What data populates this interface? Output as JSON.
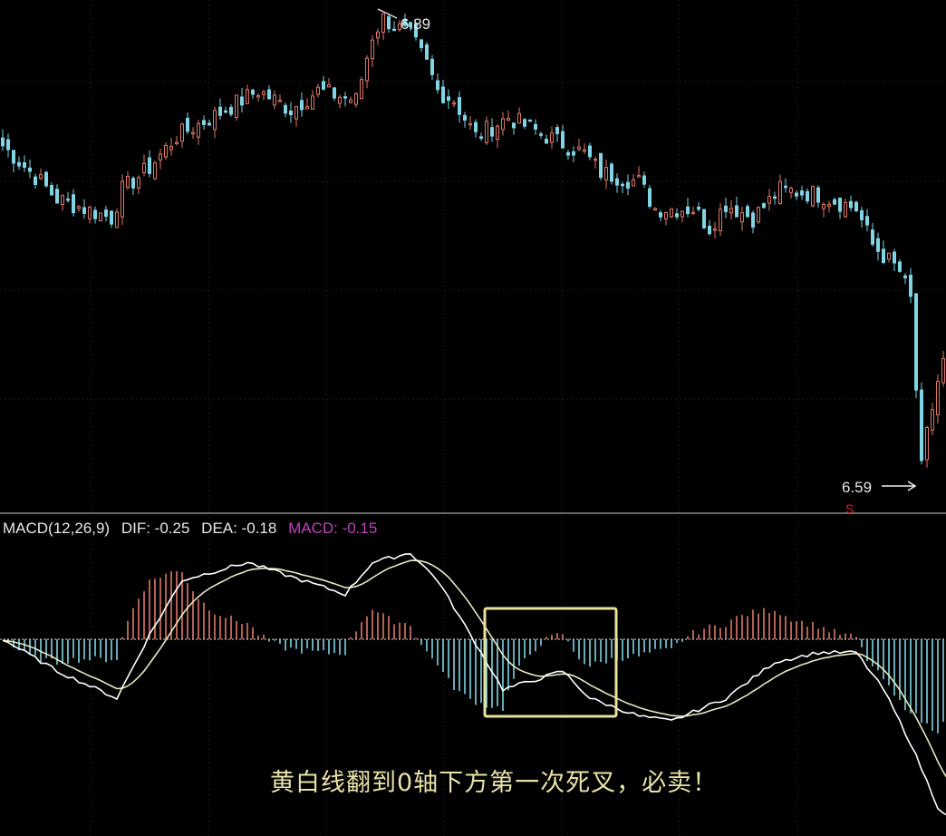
{
  "chart_data": {
    "type": "candlestick",
    "up_color": "#e07868",
    "down_color": "#80d4e4",
    "price_panel": {
      "high_label": "6.89",
      "low_label": "6.59",
      "ylim": [
        6.59,
        6.89
      ],
      "close_keypoints": [
        {
          "bar": 0,
          "close": 6.806
        },
        {
          "bar": 7,
          "close": 6.783
        },
        {
          "bar": 10,
          "close": 6.772
        },
        {
          "bar": 20,
          "close": 6.76
        },
        {
          "bar": 22,
          "close": 6.778
        },
        {
          "bar": 27,
          "close": 6.792
        },
        {
          "bar": 32,
          "close": 6.812
        },
        {
          "bar": 40,
          "close": 6.827
        },
        {
          "bar": 47,
          "close": 6.841
        },
        {
          "bar": 53,
          "close": 6.829
        },
        {
          "bar": 58,
          "close": 6.841
        },
        {
          "bar": 65,
          "close": 6.835
        },
        {
          "bar": 68,
          "close": 6.876
        },
        {
          "bar": 70,
          "close": 6.887
        },
        {
          "bar": 75,
          "close": 6.876
        },
        {
          "bar": 78,
          "close": 6.858
        },
        {
          "bar": 80,
          "close": 6.841
        },
        {
          "bar": 83,
          "close": 6.835
        },
        {
          "bar": 87,
          "close": 6.812
        },
        {
          "bar": 93,
          "close": 6.824
        },
        {
          "bar": 100,
          "close": 6.812
        },
        {
          "bar": 107,
          "close": 6.801
        },
        {
          "bar": 110,
          "close": 6.789
        },
        {
          "bar": 117,
          "close": 6.783
        },
        {
          "bar": 120,
          "close": 6.766
        },
        {
          "bar": 127,
          "close": 6.766
        },
        {
          "bar": 130,
          "close": 6.754
        },
        {
          "bar": 133,
          "close": 6.769
        },
        {
          "bar": 138,
          "close": 6.76
        },
        {
          "bar": 143,
          "close": 6.778
        },
        {
          "bar": 150,
          "close": 6.775
        },
        {
          "bar": 157,
          "close": 6.766
        },
        {
          "bar": 160,
          "close": 6.743
        },
        {
          "bar": 165,
          "close": 6.726
        },
        {
          "bar": 167,
          "close": 6.708
        },
        {
          "bar": 168,
          "close": 6.651
        },
        {
          "bar": 169,
          "close": 6.6
        },
        {
          "bar": 170,
          "close": 6.622
        },
        {
          "bar": 172,
          "close": 6.656
        },
        {
          "bar": 173,
          "close": 6.668
        }
      ]
    },
    "macd_panel": {
      "label": "MACD(12,26,9)",
      "dif_label": "DIF: -0.25",
      "dea_label": "DEA: -0.18",
      "macd_label": "MACD: -0.15",
      "macd_color": "#c040c0",
      "zero_line": 0,
      "ylim": [
        -0.28,
        0.16
      ],
      "dif_keypoints": [
        {
          "bar": 0,
          "value": 0.0
        },
        {
          "bar": 10,
          "value": -0.05
        },
        {
          "bar": 21,
          "value": -0.093
        },
        {
          "bar": 27,
          "value": 0.007
        },
        {
          "bar": 33,
          "value": 0.093
        },
        {
          "bar": 45,
          "value": 0.121
        },
        {
          "bar": 55,
          "value": 0.093
        },
        {
          "bar": 63,
          "value": 0.071
        },
        {
          "bar": 68,
          "value": 0.121
        },
        {
          "bar": 75,
          "value": 0.136
        },
        {
          "bar": 80,
          "value": 0.093
        },
        {
          "bar": 87,
          "value": -0.007
        },
        {
          "bar": 92,
          "value": -0.079
        },
        {
          "bar": 98,
          "value": -0.064
        },
        {
          "bar": 103,
          "value": -0.05
        },
        {
          "bar": 108,
          "value": -0.093
        },
        {
          "bar": 117,
          "value": -0.121
        },
        {
          "bar": 123,
          "value": -0.129
        },
        {
          "bar": 133,
          "value": -0.093
        },
        {
          "bar": 142,
          "value": -0.036
        },
        {
          "bar": 150,
          "value": -0.021
        },
        {
          "bar": 157,
          "value": -0.021
        },
        {
          "bar": 162,
          "value": -0.079
        },
        {
          "bar": 167,
          "value": -0.164
        },
        {
          "bar": 172,
          "value": -0.264
        },
        {
          "bar": 174,
          "value": -0.28
        }
      ]
    },
    "annotation": {
      "text": "黄白线翻到0轴下方第一次死叉，必卖！",
      "box_color": "#e8e29a"
    }
  }
}
